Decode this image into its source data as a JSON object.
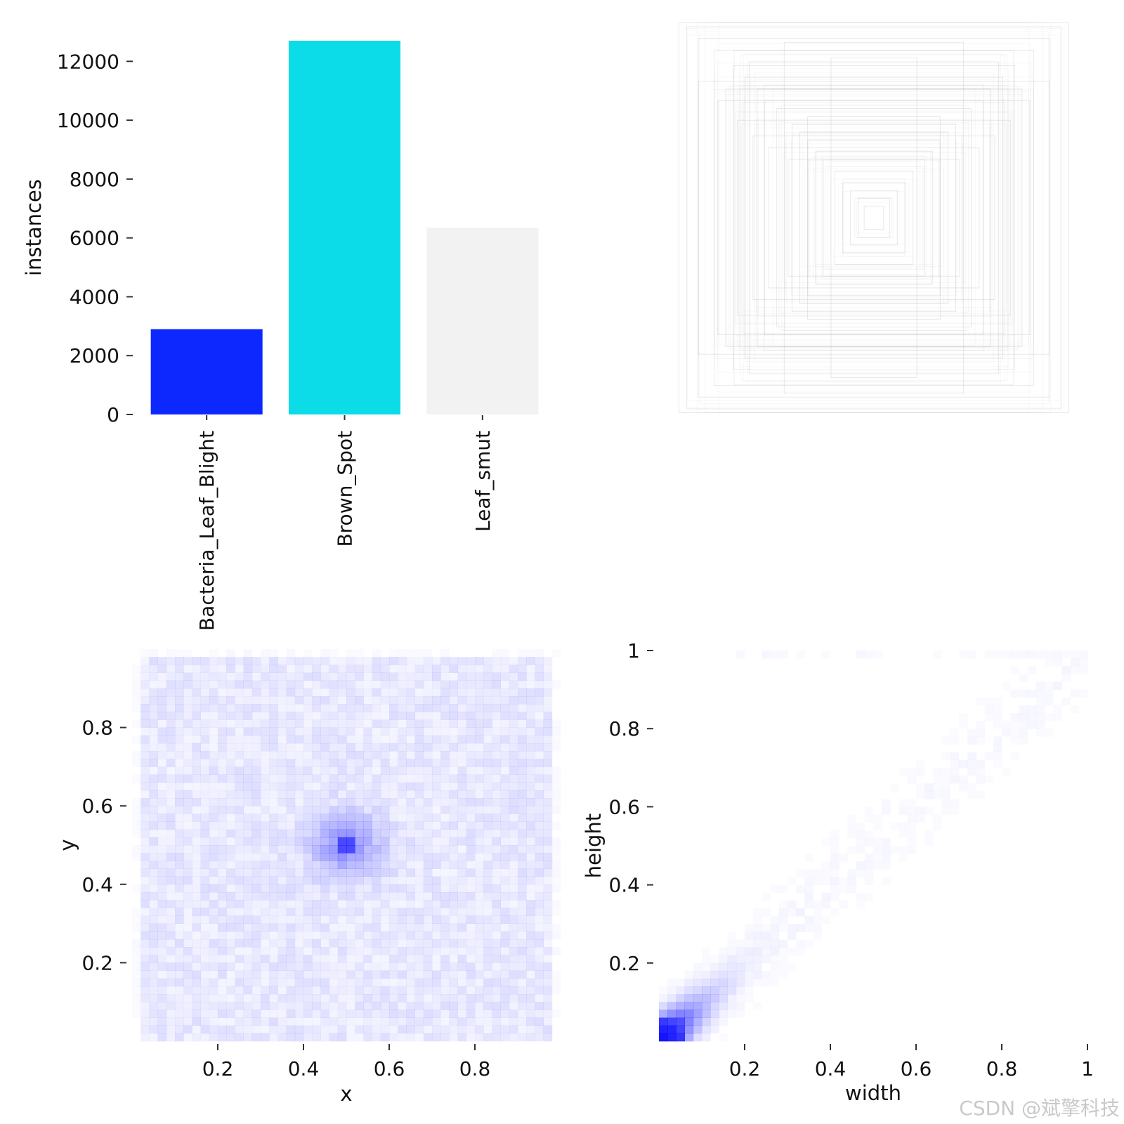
{
  "colors": {
    "text": "#111111",
    "tick": "#333333",
    "bbox_stroke": "#bdbdbd",
    "heat": "#0000ff",
    "watermark": "#c9c9c9"
  },
  "watermark": "CSDN @斌擎科技",
  "chart_data": [
    {
      "type": "bar",
      "xlabel": "",
      "ylabel": "instances",
      "ylim": [
        0,
        12700
      ],
      "yticks": [
        0,
        2000,
        4000,
        6000,
        8000,
        10000,
        12000
      ],
      "categories": [
        "Bacteria_Leaf_Blight",
        "Brown_Spot",
        "Leaf_smut"
      ],
      "values": [
        2900,
        12700,
        6350
      ],
      "bar_colors": [
        "#0c28ff",
        "#0cdce8",
        "#f2f2f2"
      ],
      "grid": false,
      "legend": "none"
    },
    {
      "type": "heatmap",
      "description_kind": "box-outlines",
      "grid": false,
      "boxes": [
        {
          "w": 1.0,
          "h": 1.0
        },
        {
          "w": 0.96,
          "h": 0.98
        },
        {
          "w": 0.9,
          "h": 0.92
        },
        {
          "w": 0.82,
          "h": 0.86
        },
        {
          "w": 0.8,
          "h": 0.6
        },
        {
          "w": 0.72,
          "h": 0.78
        },
        {
          "w": 0.66,
          "h": 0.72
        },
        {
          "w": 0.6,
          "h": 0.66
        },
        {
          "w": 0.56,
          "h": 0.6
        },
        {
          "w": 0.5,
          "h": 0.56
        },
        {
          "w": 0.46,
          "h": 0.9
        },
        {
          "w": 0.42,
          "h": 0.48
        },
        {
          "w": 0.38,
          "h": 0.44
        },
        {
          "w": 0.34,
          "h": 0.4
        },
        {
          "w": 0.3,
          "h": 0.34
        },
        {
          "w": 0.26,
          "h": 0.3
        },
        {
          "w": 0.22,
          "h": 0.82
        },
        {
          "w": 0.2,
          "h": 0.24
        },
        {
          "w": 0.16,
          "h": 0.18
        },
        {
          "w": 0.12,
          "h": 0.14
        },
        {
          "w": 0.08,
          "h": 0.1
        },
        {
          "w": 0.05,
          "h": 0.06
        },
        {
          "w": 0.7,
          "h": 0.5
        },
        {
          "w": 0.62,
          "h": 0.42
        },
        {
          "w": 0.9,
          "h": 0.7
        },
        {
          "w": 0.54,
          "h": 0.36
        },
        {
          "w": 0.76,
          "h": 0.66
        },
        {
          "w": 0.44,
          "h": 0.3
        },
        {
          "w": 0.34,
          "h": 0.52
        },
        {
          "w": 0.64,
          "h": 0.8
        }
      ]
    },
    {
      "type": "heatmap",
      "xlabel": "x",
      "ylabel": "y",
      "xlim": [
        0.0,
        1.0
      ],
      "ylim": [
        0.0,
        1.0
      ],
      "xticks": [
        0.2,
        0.4,
        0.6,
        0.8
      ],
      "yticks": [
        0.2,
        0.4,
        0.6,
        0.8
      ],
      "bins": 50,
      "peak": {
        "x": 0.5,
        "y": 0.5
      },
      "grid": false
    },
    {
      "type": "heatmap",
      "xlabel": "width",
      "ylabel": "height",
      "xlim": [
        0.0,
        1.0
      ],
      "ylim": [
        0.0,
        1.0
      ],
      "xticks": [
        0.2,
        0.4,
        0.6,
        0.8,
        1.0
      ],
      "yticks": [
        0.2,
        0.4,
        0.6,
        0.8,
        1.0
      ],
      "bins": 50,
      "peak": {
        "x": 0.03,
        "y": 0.03
      },
      "grid": false
    }
  ]
}
